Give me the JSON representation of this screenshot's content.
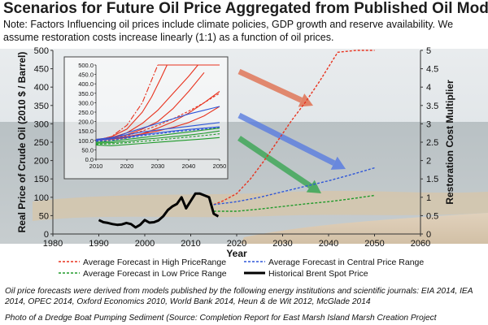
{
  "title": "Scenarios for Future Oil Price Aggregated from Published Oil Models",
  "note": "Note: Factors Influencing oil prices include climate policies, GDP growth and reserve availability. We assume restoration costs increase linearly (1:1) as a function of oil prices.",
  "source_note": "Oil price forecasts were derived from models published by the following energy institutions and scientific journals: EIA 2014, IEA 2014, OPEC 2014, Oxford Economics 2010, World Bank 2014, Heun & de Wit 2012, McGlade 2014",
  "photo_credit": "Photo of a Dredge Boat Pumping Sediment (Source: Completion Report for East Marsh Island Marsh Creation Project",
  "colors": {
    "high": "#e8321e",
    "central": "#2f56d8",
    "low": "#1f9a2a",
    "historical": "#000000",
    "arrow_high": "#e07050",
    "arrow_central": "#5a7de0",
    "arrow_low": "#3aa653"
  },
  "chart_data": [
    {
      "type": "line",
      "xlabel": "Year",
      "ylabel": "Real Price of Crude Oil (2010 $ / Barrel)",
      "y2label": "Restoration Cost Multiplier",
      "xlim": [
        1980,
        2060
      ],
      "ylim": [
        0,
        500
      ],
      "y2lim": [
        0,
        5
      ],
      "x_ticks": [
        "1980",
        "1990",
        "2000",
        "2010",
        "2020",
        "2030",
        "2040",
        "2050",
        "2060"
      ],
      "y_ticks": [
        "0",
        "50",
        "100",
        "150",
        "200",
        "250",
        "300",
        "350",
        "400",
        "450",
        "500"
      ],
      "y2_ticks": [
        "0",
        "0.5",
        "1",
        "1.5",
        "2",
        "2.5",
        "3",
        "3.5",
        "4",
        "4.5",
        "5"
      ],
      "grid": false,
      "legend_position": "bottom",
      "series": [
        {
          "name": "Average Forecast in High PriceRange",
          "style": "dashed",
          "color_key": "high",
          "x": [
            2015,
            2017,
            2020,
            2023,
            2026,
            2029,
            2032,
            2035,
            2038,
            2040,
            2042,
            2046,
            2050
          ],
          "y": [
            80,
            90,
            110,
            150,
            200,
            255,
            310,
            360,
            415,
            455,
            495,
            500,
            500
          ]
        },
        {
          "name": "Average Forecast in Central Price Range",
          "style": "dashed",
          "color_key": "central",
          "x": [
            2015,
            2020,
            2025,
            2030,
            2035,
            2040,
            2045,
            2050
          ],
          "y": [
            80,
            88,
            100,
            115,
            130,
            145,
            162,
            180
          ]
        },
        {
          "name": "Average Forecast in Low Price Range",
          "style": "dashed",
          "color_key": "low",
          "x": [
            2015,
            2020,
            2025,
            2030,
            2035,
            2040,
            2045,
            2050
          ],
          "y": [
            62,
            62,
            68,
            75,
            82,
            88,
            96,
            105
          ]
        },
        {
          "name": "Historical Brent Spot Price",
          "style": "solid",
          "color_key": "historical",
          "x": [
            1990,
            1991,
            1992,
            1993,
            1994,
            1995,
            1996,
            1997,
            1998,
            1999,
            2000,
            2001,
            2002,
            2003,
            2004,
            2005,
            2006,
            2007,
            2008,
            2009,
            2010,
            2011,
            2012,
            2013,
            2014,
            2015,
            2016
          ],
          "y": [
            38,
            32,
            30,
            27,
            25,
            26,
            30,
            27,
            18,
            25,
            38,
            31,
            32,
            37,
            48,
            65,
            75,
            82,
            100,
            70,
            90,
            110,
            110,
            105,
            100,
            55,
            48
          ]
        }
      ]
    },
    {
      "type": "line",
      "xlim": [
        2010,
        2050
      ],
      "ylim": [
        0,
        500
      ],
      "x_ticks": [
        "2010",
        "2020",
        "2030",
        "2040",
        "2050"
      ],
      "y_ticks": [
        "0.0",
        "50.0",
        "100.0",
        "150.0",
        "200.0",
        "250.0",
        "300.0",
        "350.0",
        "400.0",
        "450.0",
        "500.0"
      ],
      "series": [
        {
          "color_key": "high",
          "style": "solid",
          "x": [
            2010,
            2015,
            2020,
            2025,
            2030,
            2035,
            2040,
            2043
          ],
          "y": [
            100,
            115,
            140,
            190,
            260,
            350,
            440,
            500
          ]
        },
        {
          "color_key": "high",
          "style": "solid",
          "x": [
            2010,
            2015,
            2020,
            2025,
            2028,
            2031,
            2033
          ],
          "y": [
            100,
            120,
            160,
            250,
            330,
            430,
            500
          ]
        },
        {
          "color_key": "high",
          "style": "dashdot",
          "x": [
            2010,
            2015,
            2020,
            2025,
            2028,
            2030
          ],
          "y": [
            100,
            120,
            180,
            300,
            420,
            500
          ]
        },
        {
          "color_key": "high",
          "style": "solid",
          "x": [
            2010,
            2015,
            2020,
            2025,
            2030,
            2035,
            2040,
            2045,
            2050
          ],
          "y": [
            100,
            105,
            115,
            135,
            165,
            200,
            245,
            300,
            360
          ]
        },
        {
          "color_key": "high",
          "style": "solid",
          "x": [
            2010,
            2015,
            2020,
            2025,
            2030,
            2035,
            2040,
            2045
          ],
          "y": [
            105,
            115,
            130,
            160,
            200,
            270,
            360,
            460
          ]
        },
        {
          "color_key": "high",
          "style": "dashed",
          "x": [
            2010,
            2015,
            2020,
            2025,
            2030,
            2035,
            2040,
            2045,
            2050
          ],
          "y": [
            100,
            110,
            125,
            150,
            180,
            215,
            255,
            300,
            350
          ]
        },
        {
          "color_key": "high",
          "style": "solid",
          "x": [
            2010,
            2015,
            2020,
            2025,
            2030,
            2035,
            2040,
            2045,
            2050
          ],
          "y": [
            100,
            112,
            120,
            135,
            150,
            170,
            195,
            230,
            280
          ]
        },
        {
          "color_key": "high",
          "style": "solid",
          "x": [
            2030,
            2040,
            2050
          ],
          "y": [
            500,
            500,
            500
          ]
        },
        {
          "color_key": "central",
          "style": "solid",
          "x": [
            2010,
            2015,
            2020,
            2025,
            2030,
            2035,
            2040,
            2045,
            2050
          ],
          "y": [
            100,
            110,
            140,
            165,
            190,
            215,
            240,
            260,
            280
          ]
        },
        {
          "color_key": "central",
          "style": "solid",
          "x": [
            2010,
            2015,
            2020,
            2025,
            2030,
            2035,
            2040,
            2045,
            2050
          ],
          "y": [
            105,
            115,
            130,
            145,
            155,
            165,
            175,
            185,
            195
          ]
        },
        {
          "color_key": "central",
          "style": "solid",
          "x": [
            2010,
            2015,
            2020,
            2025,
            2030,
            2035,
            2040,
            2045,
            2050
          ],
          "y": [
            100,
            108,
            118,
            130,
            140,
            150,
            158,
            165,
            172
          ]
        },
        {
          "color_key": "central",
          "style": "dashed",
          "x": [
            2010,
            2015,
            2020,
            2025,
            2030,
            2035,
            2040,
            2045,
            2050
          ],
          "y": [
            95,
            100,
            112,
            125,
            135,
            145,
            153,
            160,
            168
          ]
        },
        {
          "color_key": "low",
          "style": "solid",
          "x": [
            2010,
            2015,
            2020,
            2025,
            2030,
            2035,
            2040,
            2045,
            2050
          ],
          "y": [
            90,
            95,
            105,
            115,
            125,
            135,
            145,
            155,
            165
          ]
        },
        {
          "color_key": "low",
          "style": "solid",
          "x": [
            2010,
            2015,
            2020,
            2025,
            2030,
            2035,
            2040,
            2045,
            2050
          ],
          "y": [
            85,
            88,
            95,
            105,
            112,
            120,
            128,
            138,
            150
          ]
        },
        {
          "color_key": "low",
          "style": "dashed",
          "x": [
            2010,
            2015,
            2020,
            2025,
            2030,
            2035,
            2040,
            2045,
            2050
          ],
          "y": [
            80,
            82,
            88,
            95,
            102,
            110,
            118,
            126,
            135
          ]
        },
        {
          "color_key": "low",
          "style": "solid",
          "x": [
            2010,
            2015,
            2020,
            2025,
            2030,
            2035,
            2040,
            2045,
            2050
          ],
          "y": [
            75,
            72,
            78,
            84,
            90,
            96,
            102,
            108,
            115
          ]
        }
      ]
    }
  ]
}
